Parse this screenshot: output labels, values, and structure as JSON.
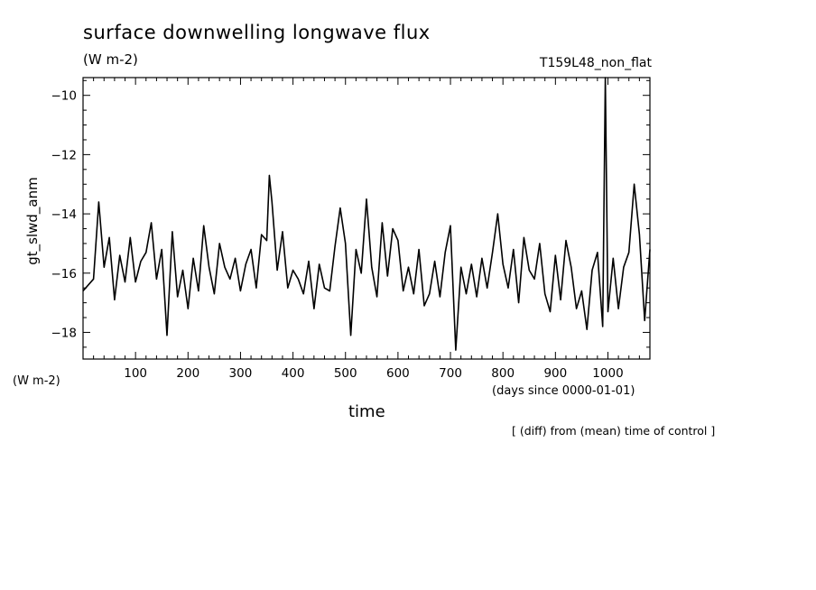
{
  "chart_data": {
    "type": "line",
    "title": "surface downwelling longwave flux",
    "units_top": "(W m-2)",
    "run_id": "T159L48_non_flat",
    "ylabel": "gt_slwd_anm",
    "y_units": "(W m-2)",
    "xlabel": "time",
    "x_units": "(days since 0000-01-01)",
    "note": "[ (diff) from (mean) time of control ]",
    "xlim": [
      0,
      1080
    ],
    "ylim": [
      -18.9,
      -9.4
    ],
    "x_ticks": [
      100,
      200,
      300,
      400,
      500,
      600,
      700,
      800,
      900,
      1000
    ],
    "y_ticks": [
      -18,
      -16,
      -14,
      -12,
      -10
    ],
    "grid": false,
    "series": [
      {
        "x": [
          0,
          20,
          30,
          40,
          50,
          60,
          70,
          80,
          90,
          100,
          110,
          120,
          130,
          140,
          150,
          160,
          170,
          180,
          190,
          200,
          210,
          220,
          230,
          240,
          250,
          260,
          270,
          280,
          290,
          300,
          310,
          320,
          330,
          340,
          350,
          355,
          360,
          370,
          380,
          390,
          400,
          410,
          420,
          430,
          440,
          450,
          460,
          470,
          480,
          490,
          500,
          510,
          520,
          530,
          540,
          550,
          560,
          570,
          580,
          590,
          600,
          610,
          620,
          630,
          640,
          650,
          660,
          670,
          680,
          690,
          700,
          710,
          720,
          730,
          740,
          750,
          760,
          770,
          780,
          790,
          800,
          810,
          820,
          830,
          840,
          850,
          860,
          870,
          880,
          890,
          900,
          910,
          920,
          930,
          940,
          950,
          960,
          970,
          980,
          990,
          995,
          1000,
          1010,
          1020,
          1030,
          1040,
          1050,
          1060,
          1070,
          1080
        ],
        "values": [
          -16.6,
          -16.2,
          -13.6,
          -15.8,
          -14.8,
          -16.9,
          -15.4,
          -16.3,
          -14.8,
          -16.3,
          -15.6,
          -15.3,
          -14.3,
          -16.2,
          -15.2,
          -18.1,
          -14.6,
          -16.8,
          -15.9,
          -17.2,
          -15.5,
          -16.6,
          -14.4,
          -15.8,
          -16.7,
          -15.0,
          -15.8,
          -16.2,
          -15.5,
          -16.6,
          -15.7,
          -15.2,
          -16.5,
          -14.7,
          -14.9,
          -12.7,
          -13.6,
          -15.9,
          -14.6,
          -16.5,
          -15.9,
          -16.2,
          -16.7,
          -15.6,
          -17.2,
          -15.7,
          -16.5,
          -16.6,
          -15.1,
          -13.8,
          -15.0,
          -18.1,
          -15.2,
          -16.0,
          -13.5,
          -15.8,
          -16.8,
          -14.3,
          -16.1,
          -14.5,
          -14.9,
          -16.6,
          -15.8,
          -16.7,
          -15.2,
          -17.1,
          -16.7,
          -15.6,
          -16.8,
          -15.3,
          -14.4,
          -18.6,
          -15.8,
          -16.7,
          -15.7,
          -16.8,
          -15.5,
          -16.5,
          -15.3,
          -14.0,
          -15.7,
          -16.5,
          -15.2,
          -17.0,
          -14.8,
          -15.9,
          -16.2,
          -15.0,
          -16.7,
          -17.3,
          -15.4,
          -16.9,
          -14.9,
          -15.8,
          -17.2,
          -16.6,
          -17.9,
          -15.9,
          -15.3,
          -17.8,
          -9.4,
          -17.3,
          -15.5,
          -17.2,
          -15.8,
          -15.3,
          -13.0,
          -14.7,
          -17.6,
          -15.2
        ]
      }
    ]
  }
}
